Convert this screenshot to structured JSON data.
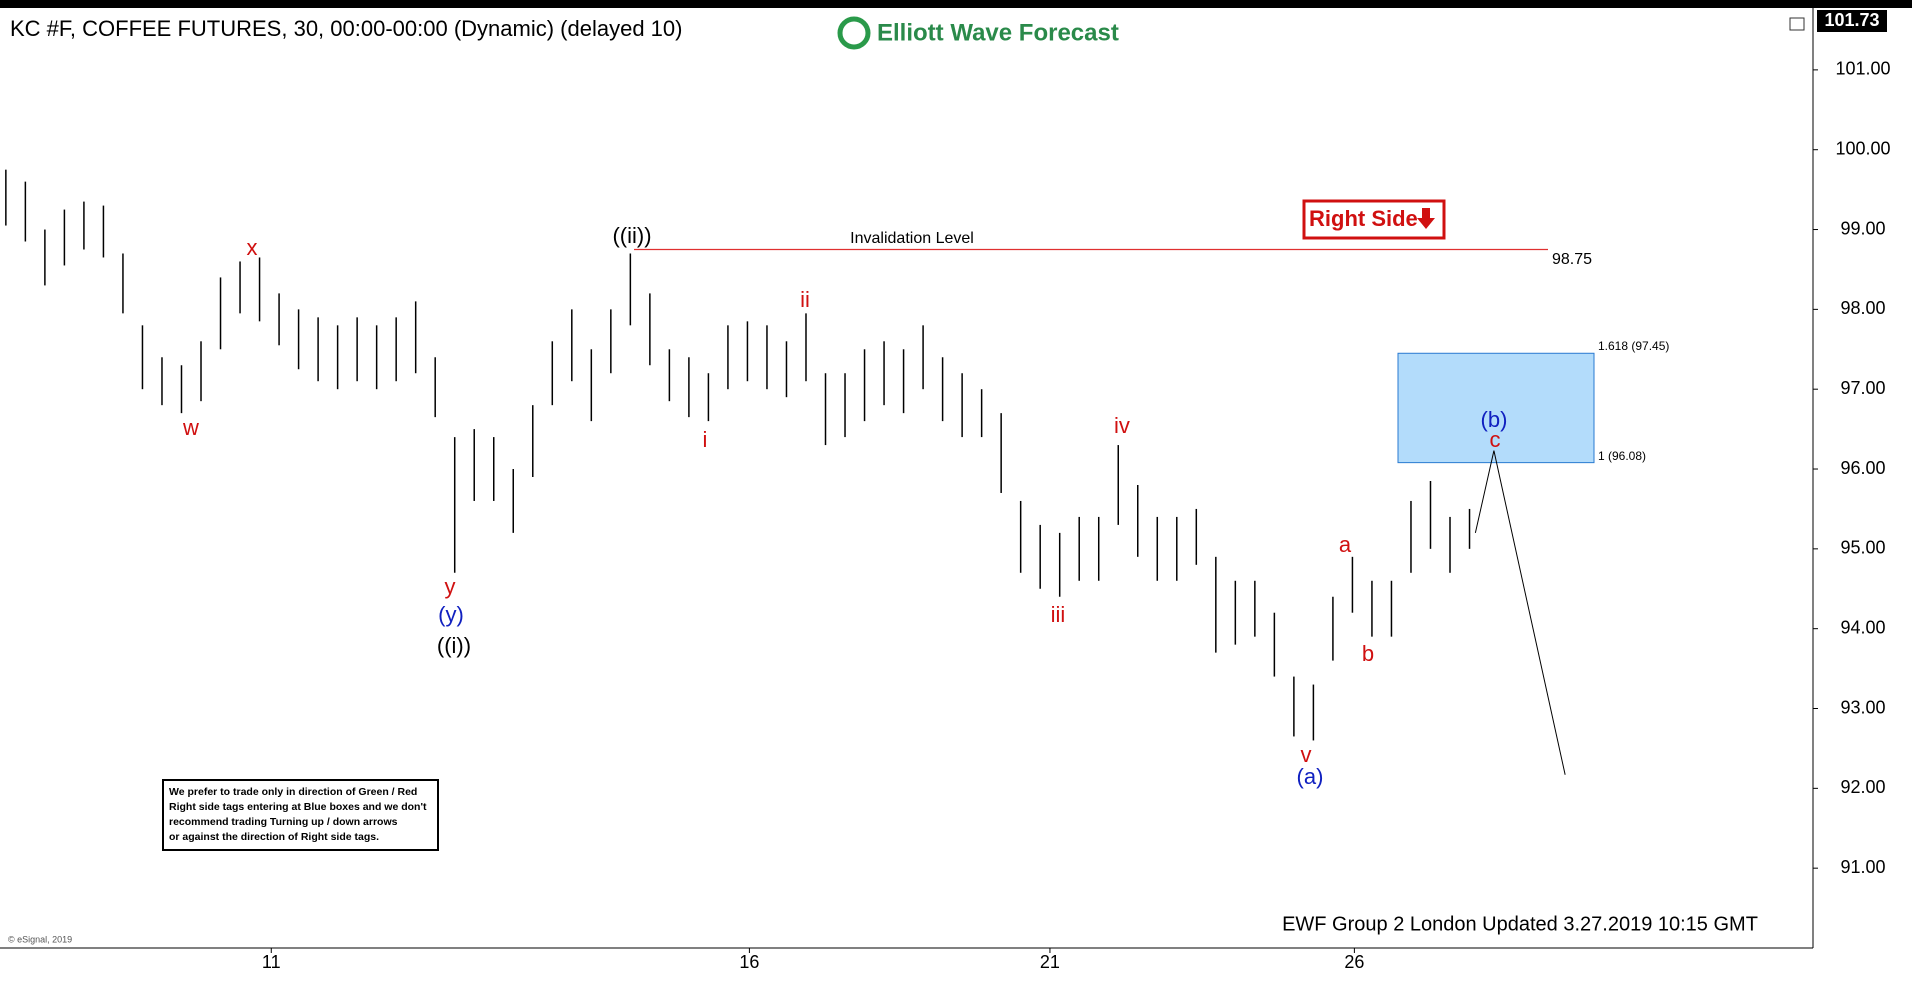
{
  "header": {
    "title": "KC #F, COFFEE FUTURES, 30, 00:00-00:00 (Dynamic) (delayed 10)",
    "logo": "Elliott Wave Forecast",
    "last_price": "101.73"
  },
  "chart_data": {
    "type": "ohlc",
    "x": [
      0,
      1,
      2,
      3,
      4,
      5,
      6,
      7,
      8,
      9,
      10,
      11,
      12,
      13,
      14,
      15,
      16,
      17,
      18,
      19,
      20,
      21,
      22,
      23,
      24,
      25,
      26,
      27,
      28,
      29,
      30,
      31,
      32,
      33,
      34,
      35,
      36,
      37,
      38,
      39,
      40,
      41,
      42,
      43,
      44,
      45,
      46,
      47,
      48,
      49,
      50,
      51,
      52,
      53,
      54,
      55,
      56,
      57,
      58,
      59,
      60,
      61,
      62,
      63,
      64,
      65,
      66,
      67,
      68,
      69,
      70,
      71,
      72,
      73,
      74,
      75
    ],
    "series": [
      {
        "name": "high",
        "color": "#000000",
        "values": [
          99.75,
          99.6,
          99.0,
          99.25,
          99.35,
          99.3,
          98.7,
          97.8,
          97.4,
          97.3,
          97.6,
          98.4,
          98.6,
          98.65,
          98.2,
          98.0,
          97.9,
          97.8,
          97.9,
          97.8,
          97.9,
          98.1,
          97.4,
          96.4,
          96.5,
          96.4,
          96.0,
          96.8,
          97.6,
          98.0,
          97.5,
          98.0,
          98.7,
          98.2,
          97.5,
          97.4,
          97.2,
          97.8,
          97.85,
          97.8,
          97.6,
          97.95,
          97.2,
          97.2,
          97.5,
          97.6,
          97.5,
          97.8,
          97.4,
          97.2,
          97.0,
          96.7,
          95.6,
          95.3,
          95.2,
          95.4,
          95.4,
          96.3,
          95.8,
          95.4,
          95.4,
          95.5,
          94.9,
          94.6,
          94.6,
          94.2,
          93.4,
          93.3,
          94.4,
          94.9,
          94.6,
          94.6,
          95.6,
          95.85,
          95.4,
          95.5
        ]
      },
      {
        "name": "low",
        "color": "#000000",
        "values": [
          99.05,
          98.85,
          98.3,
          98.55,
          98.75,
          98.65,
          97.95,
          97.0,
          96.8,
          96.7,
          96.85,
          97.5,
          97.95,
          97.85,
          97.55,
          97.25,
          97.1,
          97.0,
          97.1,
          97.0,
          97.1,
          97.2,
          96.65,
          94.7,
          95.6,
          95.6,
          95.2,
          95.9,
          96.8,
          97.1,
          96.6,
          97.2,
          97.8,
          97.3,
          96.85,
          96.65,
          96.6,
          97.0,
          97.1,
          97.0,
          96.9,
          97.1,
          96.3,
          96.4,
          96.6,
          96.8,
          96.7,
          97.0,
          96.6,
          96.4,
          96.4,
          95.7,
          94.7,
          94.5,
          94.4,
          94.6,
          94.6,
          95.3,
          94.9,
          94.6,
          94.6,
          94.8,
          93.7,
          93.8,
          93.9,
          93.4,
          92.65,
          92.6,
          93.6,
          94.2,
          93.9,
          93.9,
          94.7,
          95.0,
          94.7,
          95.0
        ]
      }
    ],
    "xlim": [
      -0.3,
      92.6
    ],
    "xticks": [
      {
        "value": 13.6,
        "label": "11"
      },
      {
        "value": 38.1,
        "label": "16"
      },
      {
        "value": 53.5,
        "label": "21"
      },
      {
        "value": 69.1,
        "label": "26"
      }
    ],
    "ylim": [
      90.0,
      101.75
    ],
    "yticks": [
      {
        "value": 91,
        "label": "91.00"
      },
      {
        "value": 92,
        "label": "92.00"
      },
      {
        "value": 93,
        "label": "93.00"
      },
      {
        "value": 94,
        "label": "94.00"
      },
      {
        "value": 95,
        "label": "95.00"
      },
      {
        "value": 96,
        "label": "96.00"
      },
      {
        "value": 97,
        "label": "97.00"
      },
      {
        "value": 98,
        "label": "98.00"
      },
      {
        "value": 99,
        "label": "99.00"
      },
      {
        "value": 100,
        "label": "100.00"
      },
      {
        "value": 101,
        "label": "101.00"
      }
    ],
    "invalidation": {
      "label": "Invalidation Level",
      "value": 98.75,
      "value_label": "98.75",
      "color": "#e03030"
    },
    "blue_box": {
      "top": 97.45,
      "bottom": 96.08,
      "top_label": "1.618 (97.45)",
      "bottom_label": "1 (96.08)",
      "color": "#b3dcfb"
    },
    "projection": {
      "x": [
        75.3,
        76.25,
        79.9
      ],
      "values": [
        95.2,
        96.23,
        92.17
      ]
    },
    "wave_labels": [
      "w",
      "x",
      "y",
      "(y)",
      "((i))",
      "((ii))",
      "i",
      "ii",
      "iii",
      "iv",
      "v",
      "(a)",
      "a",
      "b",
      "(b)",
      "c"
    ],
    "right_side_tag": "Right Side",
    "disclaimer": [
      "We prefer to trade only in direction of Green / Red",
      "Right side tags entering at Blue boxes and we don't",
      "recommend trading Turning up / down arrows",
      "or against the direction of Right side tags."
    ],
    "footer": "EWF Group 2 London Updated 3.27.2019 10:15 GMT",
    "copyright": "© eSignal, 2019"
  }
}
